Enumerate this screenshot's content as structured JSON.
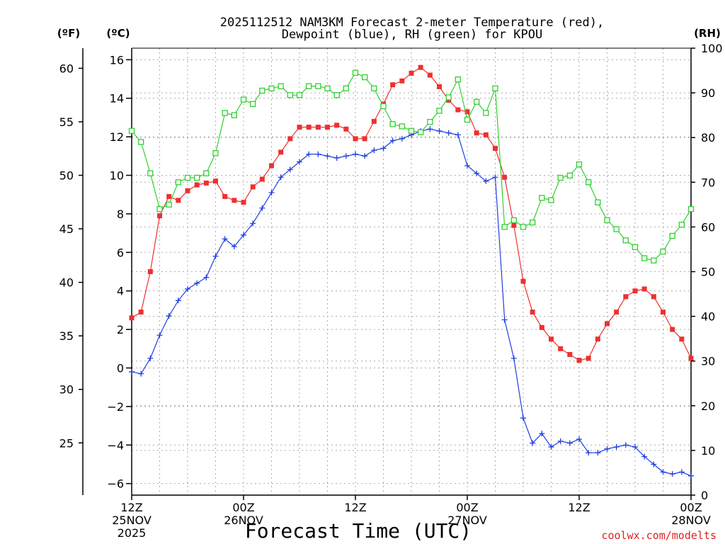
{
  "chart_data": {
    "type": "line",
    "title": [
      "2025112512 NAM3KM Forecast 2-meter Temperature (red),",
      "Dewpoint (blue), RH (green) for KPOU"
    ],
    "xlabel": "Forecast Time (UTC)",
    "credit": "coolwx.com/modelts",
    "axis_units": {
      "fahrenheit": "(ºF)",
      "celsius": "(ºC)",
      "rh": "(RH)"
    },
    "x_unit": "forecast hours from 2025-11-25 12Z",
    "xlim": [
      0,
      60
    ],
    "x_ticks": [
      {
        "hour": 0,
        "lines": [
          "12Z",
          "25NOV",
          "2025"
        ]
      },
      {
        "hour": 12,
        "lines": [
          "00Z",
          "26NOV"
        ]
      },
      {
        "hour": 24,
        "lines": [
          "12Z"
        ]
      },
      {
        "hour": 36,
        "lines": [
          "00Z",
          "27NOV"
        ]
      },
      {
        "hour": 48,
        "lines": [
          "12Z"
        ]
      },
      {
        "hour": 60,
        "lines": [
          "00Z",
          "28NOV"
        ]
      }
    ],
    "celsius_axis": {
      "lim": [
        -6.6,
        16.6
      ],
      "ticks": [
        16,
        14,
        12,
        10,
        8,
        6,
        4,
        2,
        0,
        -2,
        -4,
        -6
      ],
      "grid": true
    },
    "fahrenheit_axis": {
      "lim": [
        20.12,
        61.88
      ],
      "ticks": [
        60,
        55,
        50,
        45,
        40,
        35,
        30,
        25
      ]
    },
    "rh_axis": {
      "lim": [
        0,
        100
      ],
      "ticks": [
        100,
        90,
        80,
        70,
        60,
        50,
        40,
        30,
        20,
        10,
        0
      ],
      "grid": true
    },
    "series": [
      {
        "name": "Temperature",
        "units": "C",
        "color": "#ee3030",
        "marker": "filled-square",
        "x": [
          0,
          1,
          2,
          3,
          4,
          5,
          6,
          7,
          8,
          9,
          10,
          11,
          12,
          13,
          14,
          15,
          16,
          17,
          18,
          19,
          20,
          21,
          22,
          23,
          24,
          25,
          26,
          27,
          28,
          29,
          30,
          31,
          32,
          33,
          34,
          35,
          36,
          37,
          38,
          39,
          40,
          41,
          42,
          43,
          44,
          45,
          46,
          47,
          48,
          49,
          50,
          51,
          52,
          53,
          54,
          55,
          56,
          57,
          58,
          59,
          60
        ],
        "values": [
          2.6,
          2.9,
          5.0,
          7.9,
          8.9,
          8.7,
          9.2,
          9.5,
          9.6,
          9.7,
          8.9,
          8.7,
          8.6,
          9.4,
          9.8,
          10.5,
          11.2,
          11.9,
          12.5,
          12.5,
          12.5,
          12.5,
          12.6,
          12.4,
          11.9,
          11.9,
          12.8,
          13.7,
          14.7,
          14.9,
          15.3,
          15.6,
          15.2,
          14.6,
          13.9,
          13.4,
          13.3,
          12.2,
          12.1,
          11.4,
          9.9,
          7.4,
          4.5,
          2.9,
          2.1,
          1.5,
          1.0,
          0.7,
          0.4,
          0.5,
          1.5,
          2.3,
          2.9,
          3.7,
          4.0,
          4.1,
          3.7,
          2.9,
          2.0,
          1.5,
          0.5
        ]
      },
      {
        "name": "Dewpoint",
        "units": "C",
        "color": "#2040e0",
        "marker": "plus",
        "x": [
          0,
          1,
          2,
          3,
          4,
          5,
          6,
          7,
          8,
          9,
          10,
          11,
          12,
          13,
          14,
          15,
          16,
          17,
          18,
          19,
          20,
          21,
          22,
          23,
          24,
          25,
          26,
          27,
          28,
          29,
          30,
          31,
          32,
          33,
          34,
          35,
          36,
          37,
          38,
          39,
          40,
          41,
          42,
          43,
          44,
          45,
          46,
          47,
          48,
          49,
          50,
          51,
          52,
          53,
          54,
          55,
          56,
          57,
          58,
          59,
          60
        ],
        "values": [
          -0.2,
          -0.3,
          0.5,
          1.7,
          2.7,
          3.5,
          4.1,
          4.4,
          4.7,
          5.8,
          6.7,
          6.3,
          6.9,
          7.5,
          8.3,
          9.1,
          9.9,
          10.3,
          10.7,
          11.1,
          11.1,
          11.0,
          10.9,
          11.0,
          11.1,
          11.0,
          11.3,
          11.4,
          11.8,
          11.9,
          12.1,
          12.3,
          12.4,
          12.3,
          12.2,
          12.1,
          10.5,
          10.1,
          9.7,
          9.9,
          2.5,
          0.5,
          -2.6,
          -3.9,
          -3.4,
          -4.1,
          -3.8,
          -3.9,
          -3.7,
          -4.4,
          -4.4,
          -4.2,
          -4.1,
          -4.0,
          -4.1,
          -4.6,
          -5.0,
          -5.4,
          -5.5,
          -5.4,
          -5.6
        ]
      },
      {
        "name": "RH",
        "units": "%",
        "color": "#30d030",
        "marker": "open-square",
        "x": [
          0,
          1,
          2,
          3,
          4,
          5,
          6,
          7,
          8,
          9,
          10,
          11,
          12,
          13,
          14,
          15,
          16,
          17,
          18,
          19,
          20,
          21,
          22,
          23,
          24,
          25,
          26,
          27,
          28,
          29,
          30,
          31,
          32,
          33,
          34,
          35,
          36,
          37,
          38,
          39,
          40,
          41,
          42,
          43,
          44,
          45,
          46,
          47,
          48,
          49,
          50,
          51,
          52,
          53,
          54,
          55,
          56,
          57,
          58,
          59,
          60
        ],
        "values": [
          81.5,
          79,
          72,
          64,
          65,
          70,
          71,
          71,
          72,
          76.5,
          85.5,
          85,
          88.5,
          87.5,
          90.5,
          91,
          91.5,
          89.5,
          89.5,
          91.5,
          91.5,
          91,
          89.5,
          91,
          94.5,
          93.5,
          91,
          87,
          83,
          82.5,
          81.5,
          81.2,
          83.5,
          86,
          89,
          93,
          84,
          88,
          85.5,
          91,
          60,
          61.5,
          60,
          61,
          66.5,
          66,
          71,
          71.5,
          74,
          70,
          65.5,
          61.5,
          59.5,
          57,
          55.5,
          53,
          52.5,
          54.5,
          58,
          60.5,
          64
        ]
      }
    ]
  }
}
